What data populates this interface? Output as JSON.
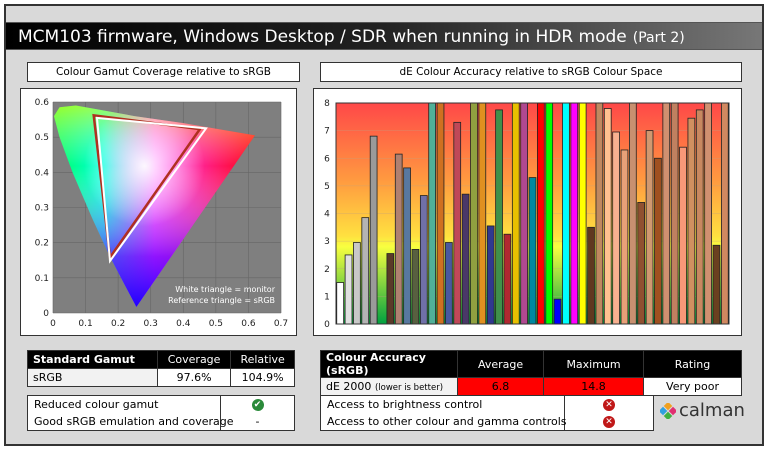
{
  "title": {
    "main": "MCM103 firmware, Windows Desktop / SDR when running in HDR mode",
    "part": "(Part 2)"
  },
  "gamut_panel": {
    "title": "Colour Gamut Coverage relative to sRGB",
    "legend_line1": "White triangle = monitor",
    "legend_line2": "Reference triangle = sRGB"
  },
  "de_panel": {
    "title": "dE Colour Accuracy relative to sRGB Colour Space"
  },
  "chart_data": [
    {
      "type": "scatter",
      "subtype": "cie-uv-gamut",
      "x_ticks": [
        "0",
        "0.1",
        "0.2",
        "0.3",
        "0.4",
        "0.5",
        "0.6",
        "0.7"
      ],
      "y_ticks": [
        "0",
        "0.1",
        "0.2",
        "0.3",
        "0.4",
        "0.5",
        "0.6"
      ],
      "xlim": [
        0,
        0.7
      ],
      "ylim": [
        0,
        0.6
      ],
      "grid": true,
      "monitor_triangle": [
        [
          0.135,
          0.555
        ],
        [
          0.47,
          0.525
        ],
        [
          0.175,
          0.148
        ]
      ],
      "reference_triangle": [
        [
          0.125,
          0.562
        ],
        [
          0.451,
          0.523
        ],
        [
          0.175,
          0.158
        ]
      ],
      "monitor_color": "#ffffff",
      "reference_color": "#b03020"
    },
    {
      "type": "bar",
      "ylim": [
        0,
        8
      ],
      "y_ticks": [
        "0",
        "1",
        "2",
        "3",
        "4",
        "5",
        "6",
        "7",
        "8"
      ],
      "grid": true,
      "note": "bars at 8 extend beyond the axis maximum",
      "values": [
        1.5,
        2.5,
        2.95,
        3.85,
        6.8,
        null,
        2.55,
        6.15,
        5.65,
        2.7,
        4.65,
        8,
        8,
        2.95,
        7.3,
        4.7,
        8,
        8,
        3.55,
        7.75,
        3.25,
        8,
        8,
        5.3,
        8,
        8,
        0.9,
        8,
        8,
        8,
        3.5,
        8,
        7.8,
        6.95,
        6.3,
        8,
        4.4,
        7.0,
        6.0,
        8,
        8,
        6.4,
        7.45,
        7.75,
        8,
        2.85,
        8
      ],
      "colors": [
        "#ffffff",
        "#e0e0e0",
        "#c8c8c8",
        "#b4b4b4",
        "#9a9a9a",
        null,
        "#5a3a28",
        "#b08070",
        "#5878a0",
        "#586040",
        "#7070a8",
        "#50b098",
        "#d07020",
        "#4858a0",
        "#c04858",
        "#4a3868",
        "#90a040",
        "#e09020",
        "#303890",
        "#40904a",
        "#b02830",
        "#e8c000",
        "#b04890",
        "#0088a0",
        "#ff0000",
        "#00ff00",
        "#0000ff",
        "#00ffff",
        "#ff00ff",
        "#ffff00",
        "#603820",
        "#c08860",
        "#ffc090",
        "#f8b090",
        "#e8a078",
        "#c89070",
        "#905030",
        "#d09870",
        "#a05020",
        "#d09070",
        "#c08060",
        "#f89878",
        "#d09060",
        "#c88860",
        "#d09070",
        "#6a4020",
        "#d08860"
      ]
    }
  ],
  "gamut_table": {
    "headers": [
      "Standard Gamut",
      "Coverage",
      "Relative"
    ],
    "row": [
      "sRGB",
      "97.6%",
      "104.9%"
    ]
  },
  "accuracy_table": {
    "headers": [
      "Colour Accuracy (sRGB)",
      "Average",
      "Maximum",
      "Rating"
    ],
    "label": "dE 2000",
    "label_note": "(lower is better)",
    "average": "6.8",
    "maximum": "14.8",
    "rating": "Very poor",
    "bad_color": "#ff0000"
  },
  "gamut_features": [
    {
      "label": "Reduced colour gamut",
      "status": "check-icon",
      "symbol": "✔"
    },
    {
      "label": "Good sRGB emulation and coverage",
      "status": "none",
      "symbol": "-"
    }
  ],
  "control_features": [
    {
      "label": "Access to brightness control",
      "status": "cross-icon",
      "symbol": "✕"
    },
    {
      "label": "Access to other colour and gamma controls",
      "status": "cross-icon",
      "symbol": "✕"
    }
  ],
  "logo": {
    "text": "calman"
  }
}
